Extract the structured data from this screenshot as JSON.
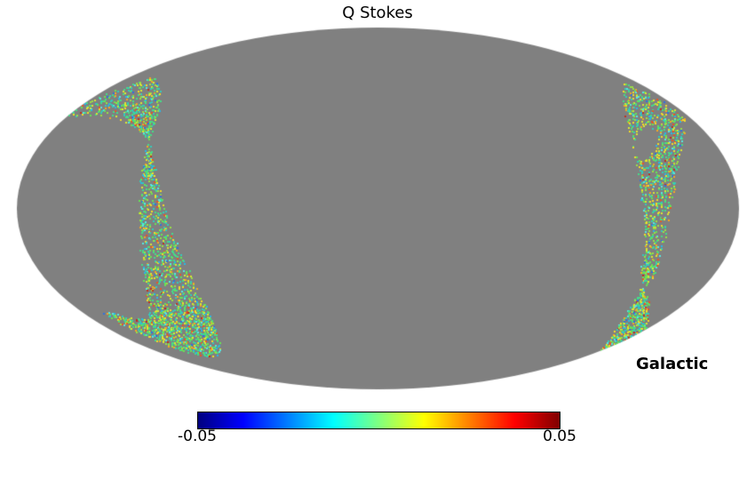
{
  "title": "Q Stokes",
  "coordinate_label": "Galactic",
  "colorbar": {
    "min_label": "-0.05",
    "max_label": "0.05",
    "colormap": "jet"
  },
  "colors": {
    "background": "#FFFFFF",
    "unseen_gray": "#808080",
    "text": "#000000",
    "jet_stops": [
      [
        "#000080",
        0
      ],
      [
        "#0000FF",
        12.5
      ],
      [
        "#00FFFF",
        37.5
      ],
      [
        "#FFFF00",
        62.5
      ],
      [
        "#FF0000",
        87.5
      ],
      [
        "#800000",
        100
      ]
    ],
    "speckle_palette": [
      {
        "c": "#44DD88",
        "w": 0.2
      },
      {
        "c": "#66E455",
        "w": 0.13
      },
      {
        "c": "#33CCBB",
        "w": 0.13
      },
      {
        "c": "#55E8E0",
        "w": 0.07
      },
      {
        "c": "#99E044",
        "w": 0.12
      },
      {
        "c": "#D8E832",
        "w": 0.1
      },
      {
        "c": "#F0DC28",
        "w": 0.08
      },
      {
        "c": "#F5A623",
        "w": 0.05
      },
      {
        "c": "#E85525",
        "w": 0.04
      },
      {
        "c": "#C03020",
        "w": 0.02
      },
      {
        "c": "#2F6FE0",
        "w": 0.02
      },
      {
        "c": "#28B7E8",
        "w": 0.04
      }
    ]
  },
  "chart_data": {
    "type": "heatmap",
    "title": "Q Stokes",
    "projection": "Mollweide (healpy mollview)",
    "coordinate_system": "Galactic",
    "colormap": "jet",
    "colorbar_range": [
      -0.05,
      0.05
    ],
    "colorbar_tick_labels": [
      "-0.05",
      "0.05"
    ],
    "unobserved_region": "uniform gray (UNSEEN pixels) covering most of the sphere; white outside the projection ellipse",
    "observed_regions": [
      {
        "location": "left limb",
        "shape": "bowtie: band hugging the upper-left rim that pinches to a point (~20% width, ~30% height), then a widening curved band sweeping down to fan out along the lower-left rim",
        "typical_values": "speckled values near 0 (green/cyan/yellow), occasional orange/red and blue outliers near ±0.05"
      },
      {
        "location": "right limb",
        "shape": "curved vertical band along the upper-right rim containing an unobserved oval gap, pinching to a point (~85% width, ~60% height) and fanning into a dense triangular patch on the lower-right rim",
        "typical_values": "speckled values near 0 (green/cyan/yellow), occasional orange/red and blue outliers near ±0.05"
      }
    ],
    "legend_position": "horizontal colorbar centered below the map"
  }
}
